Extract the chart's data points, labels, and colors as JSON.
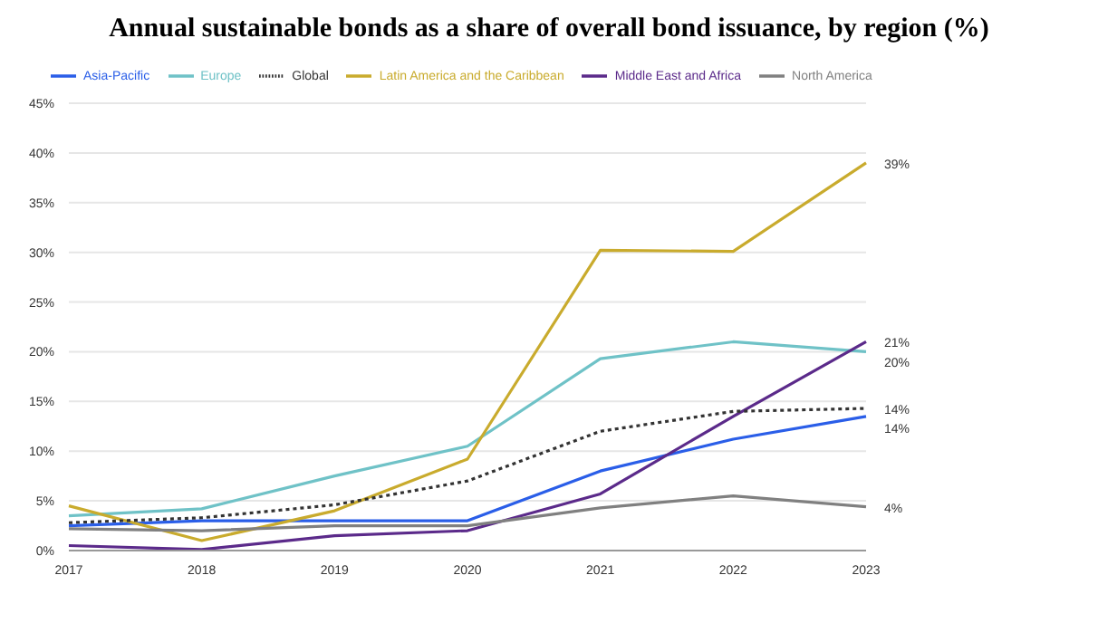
{
  "chart_data": {
    "type": "line",
    "title": "Annual sustainable bonds as a share of overall bond issuance, by region (%)",
    "categories": [
      "2017",
      "2018",
      "2019",
      "2020",
      "2021",
      "2022",
      "2023"
    ],
    "series": [
      {
        "name": "Asia-Pacific",
        "color": "#2a5ee8",
        "values": [
          2.5,
          3.0,
          3.0,
          3.0,
          8.0,
          11.2,
          13.5
        ],
        "value_labels": [
          null,
          null,
          null,
          null,
          null,
          null,
          "14%"
        ]
      },
      {
        "name": "Europe",
        "color": "#6fc2c7",
        "values": [
          3.5,
          4.2,
          7.5,
          10.5,
          19.3,
          21.0,
          20.0
        ],
        "value_labels": [
          null,
          null,
          null,
          null,
          null,
          null,
          "20%"
        ]
      },
      {
        "name": "Latin America and the Caribbean",
        "color": "#c9ab2d",
        "values": [
          4.5,
          1.0,
          4.0,
          9.2,
          30.2,
          30.1,
          39.0
        ],
        "value_labels": [
          null,
          null,
          null,
          null,
          null,
          null,
          "39%"
        ]
      },
      {
        "name": "Middle East and Africa",
        "color": "#5b2a8a",
        "values": [
          0.5,
          0.1,
          1.5,
          2.0,
          5.7,
          13.5,
          21.0
        ],
        "value_labels": [
          null,
          null,
          null,
          null,
          null,
          null,
          "21%"
        ]
      },
      {
        "name": "North America",
        "color": "#808080",
        "values": [
          2.2,
          2.0,
          2.5,
          2.5,
          4.3,
          5.5,
          4.4
        ],
        "value_labels": [
          null,
          null,
          null,
          null,
          null,
          null,
          "4%"
        ]
      },
      {
        "name": "Global",
        "color": "#333333",
        "line_style": "dotted",
        "values": [
          2.8,
          3.3,
          4.6,
          7.0,
          12.0,
          14.0,
          14.3
        ],
        "value_labels": [
          null,
          null,
          null,
          null,
          null,
          null,
          "14%"
        ]
      }
    ],
    "ylim": [
      0,
      45
    ],
    "yticks": [
      {
        "value": 0,
        "label": "0%"
      },
      {
        "value": 5,
        "label": "5%"
      },
      {
        "value": 10,
        "label": "10%"
      },
      {
        "value": 15,
        "label": "15%"
      },
      {
        "value": 20,
        "label": "20%"
      },
      {
        "value": 25,
        "label": "25%"
      },
      {
        "value": 30,
        "label": "30%"
      },
      {
        "value": 35,
        "label": "35%"
      },
      {
        "value": 40,
        "label": "40%"
      },
      {
        "value": 45,
        "label": "45%"
      }
    ],
    "grid": "y",
    "legend": "top",
    "marker": "none"
  }
}
